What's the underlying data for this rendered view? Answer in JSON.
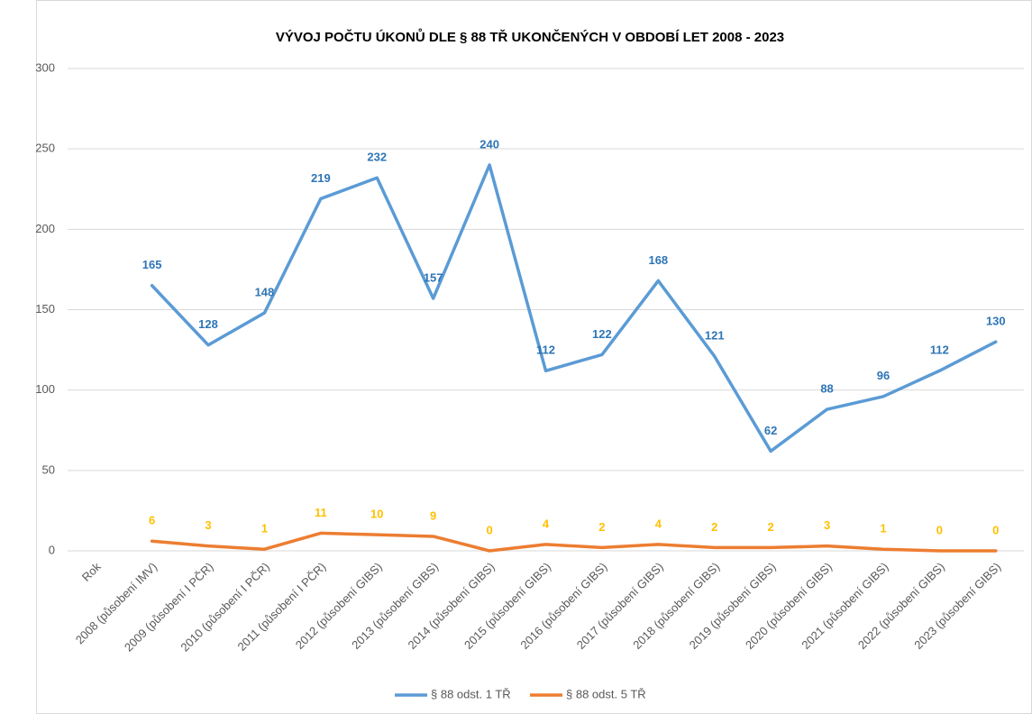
{
  "chart_data": {
    "type": "line",
    "title": "VÝVOJ POČTU ÚKONŮ DLE § 88 TŘ UKONČENÝCH V OBDOBÍ LET 2008 - 2023",
    "categories": [
      "Rok",
      "2008 (působení IMV)",
      "2009 (působení I PČR)",
      "2010 (působení I PČR)",
      "2011 (působení I PČR)",
      "2012 (působení GIBS)",
      "2013 (působení GIBS)",
      "2014 (působení GIBS)",
      "2015 (působení GIBS)",
      "2016 (působení GIBS)",
      "2017 (působení GIBS)",
      "2018 (působení GIBS)",
      "2019 (působení GIBS)",
      "2020 (působení GIBS)",
      "2021 (působení GIBS)",
      "2022 (působení GIBS)",
      "2023 (působení GIBS)"
    ],
    "series": [
      {
        "name": "§ 88 odst. 1 TŘ",
        "color": "#5b9bd5",
        "label_color": "#2e75b6",
        "values": [
          null,
          165,
          128,
          148,
          219,
          232,
          157,
          240,
          112,
          122,
          168,
          121,
          62,
          88,
          96,
          112,
          130
        ]
      },
      {
        "name": "§ 88 odst. 5 TŘ",
        "color": "#ed7d31",
        "label_color": "#ffc000",
        "values": [
          null,
          6,
          3,
          1,
          11,
          10,
          9,
          0,
          4,
          2,
          4,
          2,
          2,
          3,
          1,
          0,
          0
        ]
      }
    ],
    "ylim": [
      0,
      300
    ],
    "yticks": [
      0,
      50,
      100,
      150,
      200,
      250,
      300
    ],
    "grid": true,
    "legend": "bottom"
  }
}
